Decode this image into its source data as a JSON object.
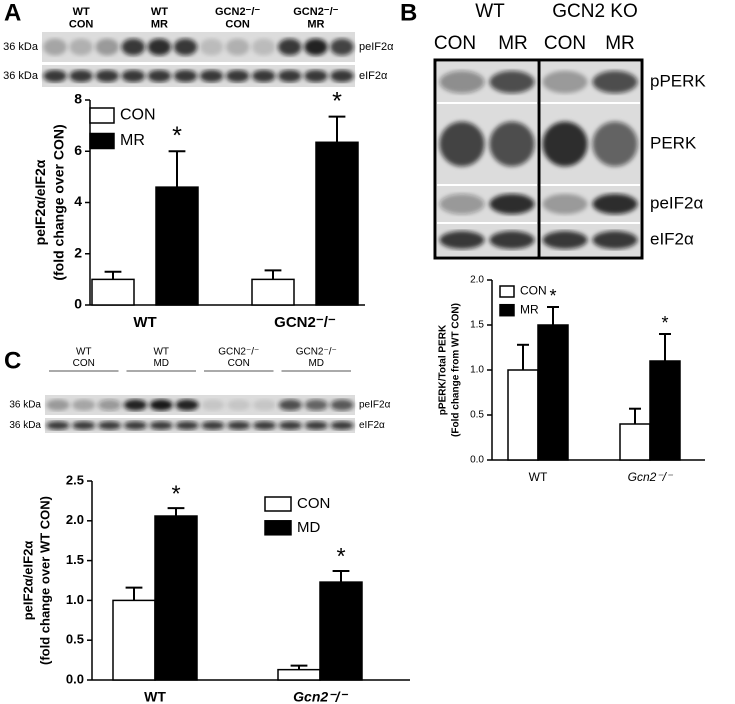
{
  "panel_labels": [
    "A",
    "B",
    "C"
  ],
  "blots": [
    {
      "groups": [
        [
          "WT",
          "CON"
        ],
        [
          "WT",
          "MR"
        ],
        [
          "GCN2⁻/⁻",
          "CON"
        ],
        [
          "GCN2⁻/⁻",
          "MR"
        ]
      ],
      "rows": [
        [
          "36 kDa",
          "peIF2α"
        ],
        [
          "36 kDa",
          "eIF2α"
        ]
      ]
    },
    {
      "genotypes": [
        "WT",
        "GCN2 KO"
      ],
      "conditions": [
        "CON",
        "MR",
        "CON",
        "MR"
      ],
      "rows": [
        "pPERK",
        "PERK",
        "peIF2α",
        "eIF2α"
      ]
    },
    {
      "groups": [
        [
          "WT",
          "CON"
        ],
        [
          "WT",
          "MD"
        ],
        [
          "GCN2⁻/⁻",
          "CON"
        ],
        [
          "GCN2⁻/⁻",
          "MD"
        ]
      ],
      "rows": [
        [
          "36 kDa",
          "peIF2α"
        ],
        [
          "36 kDa",
          "eIF2α"
        ]
      ]
    }
  ],
  "chart_data": [
    {
      "type": "bar",
      "ylabel": [
        "peIF2α/eIF2α",
        "(fold change over CON)"
      ],
      "categories": [
        "WT",
        "GCN2⁻/⁻"
      ],
      "series": [
        {
          "name": "CON",
          "color": "#ffffff",
          "values": [
            1.0,
            1.0
          ],
          "errors": [
            0.3,
            0.35
          ]
        },
        {
          "name": "MR",
          "color": "#000000",
          "values": [
            4.6,
            6.35
          ],
          "errors": [
            1.4,
            1.0
          ]
        }
      ],
      "annotations": [
        "*",
        "*"
      ],
      "ylim": [
        0,
        8
      ],
      "yticks": [
        0,
        2,
        4,
        6,
        8
      ]
    },
    {
      "type": "bar",
      "ylabel": [
        "pPERK/Total PERK",
        "(Fold change from WT CON)"
      ],
      "categories": [
        "WT",
        "Gcn2⁻/⁻"
      ],
      "series": [
        {
          "name": "CON",
          "color": "#ffffff",
          "values": [
            1.0,
            0.4
          ],
          "errors": [
            0.28,
            0.17
          ]
        },
        {
          "name": "MR",
          "color": "#000000",
          "values": [
            1.5,
            1.1
          ],
          "errors": [
            0.2,
            0.3
          ]
        }
      ],
      "annotations": [
        "*",
        "*"
      ],
      "ylim": [
        0,
        2.0
      ],
      "yticks": [
        {
          "value": 0,
          "label": "0.0"
        },
        0.5,
        {
          "value": 1,
          "label": "1.0"
        },
        1.5,
        {
          "value": 2,
          "label": "2.0"
        }
      ]
    },
    {
      "type": "bar",
      "ylabel": [
        "peIF2α/eIF2α",
        "(fold change over WT CON)"
      ],
      "categories": [
        "WT",
        "Gcn2⁻/⁻"
      ],
      "series": [
        {
          "name": "CON",
          "color": "#ffffff",
          "values": [
            1.0,
            0.13
          ],
          "errors": [
            0.16,
            0.05
          ]
        },
        {
          "name": "MD",
          "color": "#000000",
          "values": [
            2.06,
            1.23
          ],
          "errors": [
            0.1,
            0.14
          ]
        }
      ],
      "annotations": [
        "*",
        "*"
      ],
      "ylim": [
        0,
        2.5
      ],
      "yticks": [
        {
          "value": 0,
          "label": "0.0"
        },
        0.5,
        {
          "value": 1,
          "label": "1.0"
        },
        1.5,
        {
          "value": 2,
          "label": "2.0"
        },
        2.5
      ]
    }
  ]
}
